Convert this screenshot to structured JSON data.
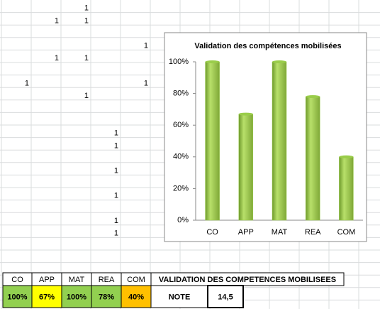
{
  "sheet": {
    "rows": [
      [
        null,
        null,
        1,
        null,
        null
      ],
      [
        null,
        1,
        1,
        null,
        null
      ],
      [
        null,
        null,
        null,
        null,
        null
      ],
      [
        null,
        null,
        null,
        null,
        1
      ],
      [
        null,
        1,
        1,
        null,
        null
      ],
      [
        null,
        null,
        null,
        null,
        null
      ],
      [
        1,
        null,
        null,
        null,
        1
      ],
      [
        null,
        null,
        1,
        null,
        null
      ],
      [
        null,
        null,
        null,
        null,
        null
      ],
      [
        null,
        null,
        null,
        null,
        null
      ],
      [
        null,
        null,
        null,
        1,
        null
      ],
      [
        null,
        null,
        null,
        1,
        null
      ],
      [
        null,
        null,
        null,
        null,
        null
      ],
      [
        null,
        null,
        null,
        1,
        null
      ],
      [
        null,
        null,
        null,
        null,
        null
      ],
      [
        null,
        null,
        null,
        1,
        null
      ],
      [
        null,
        null,
        null,
        null,
        null
      ],
      [
        null,
        null,
        null,
        1,
        null
      ],
      [
        null,
        null,
        null,
        1,
        null
      ]
    ]
  },
  "chart_data": {
    "type": "bar",
    "title": "Validation des compétences mobilisées",
    "categories": [
      "CO",
      "APP",
      "MAT",
      "REA",
      "COM"
    ],
    "values": [
      100,
      67,
      100,
      78,
      40
    ],
    "color": "#9acd4a",
    "ylim": [
      0,
      100
    ],
    "yticks": [
      {
        "value": 0,
        "label": "0%"
      },
      {
        "value": 20,
        "label": "20%"
      },
      {
        "value": 40,
        "label": "40%"
      },
      {
        "value": 60,
        "label": "60%"
      },
      {
        "value": 80,
        "label": "80%"
      },
      {
        "value": 100,
        "label": "100%"
      }
    ]
  },
  "table": {
    "headers": [
      "CO",
      "APP",
      "MAT",
      "REA",
      "COM"
    ],
    "title": "VALIDATION DES COMPETENCES MOBILISEES",
    "scores": [
      "100%",
      "67%",
      "100%",
      "78%",
      "40%"
    ],
    "score_colors": [
      "#92d050",
      "#ffff00",
      "#92d050",
      "#92d050",
      "#ffc000"
    ],
    "note_label": "NOTE",
    "note": "14,5"
  }
}
